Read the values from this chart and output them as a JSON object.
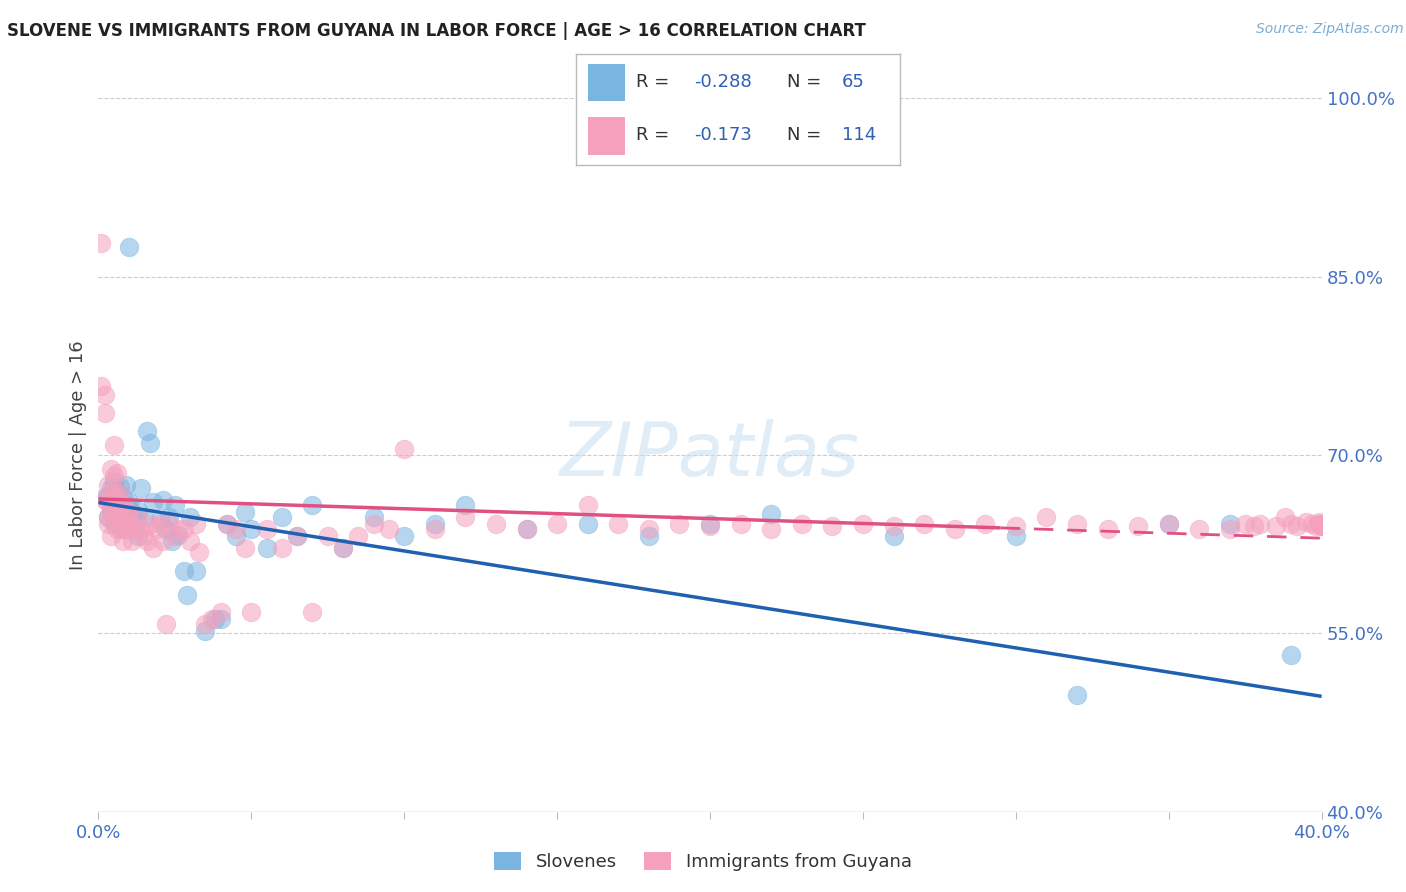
{
  "title": "SLOVENE VS IMMIGRANTS FROM GUYANA IN LABOR FORCE | AGE > 16 CORRELATION CHART",
  "source": "Source: ZipAtlas.com",
  "ylabel": "In Labor Force | Age > 16",
  "xlim": [
    0.0,
    0.4
  ],
  "ylim": [
    0.4,
    1.0
  ],
  "xticks": [
    0.0,
    0.05,
    0.1,
    0.15,
    0.2,
    0.25,
    0.3,
    0.35,
    0.4
  ],
  "yticks_right": [
    1.0,
    0.85,
    0.7,
    0.55,
    0.4
  ],
  "ytick_right_labels": [
    "100.0%",
    "85.0%",
    "70.0%",
    "55.0%",
    "40.0%"
  ],
  "grid_color": "#cccccc",
  "background_color": "#ffffff",
  "blue_color": "#7ab4e0",
  "pink_color": "#f5a0bc",
  "blue_line_color": "#2060b0",
  "pink_line_color": "#e05080",
  "trend_blue_x0": 0.0,
  "trend_blue_x1": 0.4,
  "trend_blue_y0": 0.66,
  "trend_blue_y1": 0.497,
  "trend_pink_x0": 0.0,
  "trend_pink_x1": 0.4,
  "trend_pink_y0": 0.663,
  "trend_pink_y1": 0.63,
  "trend_pink_solid_end": 0.295,
  "slovene_x": [
    0.002,
    0.003,
    0.003,
    0.004,
    0.004,
    0.005,
    0.005,
    0.005,
    0.006,
    0.006,
    0.007,
    0.007,
    0.008,
    0.008,
    0.009,
    0.009,
    0.01,
    0.01,
    0.011,
    0.012,
    0.013,
    0.013,
    0.014,
    0.015,
    0.016,
    0.017,
    0.018,
    0.02,
    0.021,
    0.022,
    0.023,
    0.024,
    0.025,
    0.026,
    0.028,
    0.029,
    0.03,
    0.032,
    0.035,
    0.038,
    0.04,
    0.042,
    0.045,
    0.048,
    0.05,
    0.055,
    0.06,
    0.065,
    0.07,
    0.08,
    0.09,
    0.1,
    0.11,
    0.12,
    0.14,
    0.16,
    0.18,
    0.2,
    0.22,
    0.26,
    0.3,
    0.32,
    0.35,
    0.37,
    0.39
  ],
  "slovene_y": [
    0.665,
    0.665,
    0.648,
    0.672,
    0.655,
    0.678,
    0.66,
    0.642,
    0.67,
    0.655,
    0.673,
    0.65,
    0.665,
    0.638,
    0.658,
    0.675,
    0.875,
    0.66,
    0.652,
    0.645,
    0.653,
    0.632,
    0.672,
    0.648,
    0.72,
    0.71,
    0.66,
    0.645,
    0.662,
    0.638,
    0.648,
    0.628,
    0.658,
    0.633,
    0.602,
    0.582,
    0.648,
    0.602,
    0.552,
    0.562,
    0.562,
    0.642,
    0.632,
    0.652,
    0.638,
    0.622,
    0.648,
    0.632,
    0.658,
    0.622,
    0.648,
    0.632,
    0.642,
    0.658,
    0.638,
    0.642,
    0.632,
    0.642,
    0.65,
    0.632,
    0.632,
    0.498,
    0.642,
    0.642,
    0.532
  ],
  "guyana_x": [
    0.001,
    0.001,
    0.002,
    0.002,
    0.002,
    0.003,
    0.003,
    0.003,
    0.003,
    0.004,
    0.004,
    0.004,
    0.004,
    0.005,
    0.005,
    0.005,
    0.005,
    0.006,
    0.006,
    0.006,
    0.006,
    0.007,
    0.007,
    0.007,
    0.008,
    0.008,
    0.008,
    0.009,
    0.009,
    0.01,
    0.01,
    0.011,
    0.011,
    0.012,
    0.013,
    0.014,
    0.015,
    0.016,
    0.017,
    0.018,
    0.019,
    0.02,
    0.021,
    0.022,
    0.023,
    0.025,
    0.026,
    0.028,
    0.03,
    0.032,
    0.033,
    0.035,
    0.037,
    0.04,
    0.042,
    0.045,
    0.048,
    0.05,
    0.055,
    0.06,
    0.065,
    0.07,
    0.075,
    0.08,
    0.085,
    0.09,
    0.095,
    0.1,
    0.11,
    0.12,
    0.13,
    0.14,
    0.15,
    0.16,
    0.17,
    0.18,
    0.19,
    0.2,
    0.21,
    0.22,
    0.23,
    0.24,
    0.25,
    0.26,
    0.27,
    0.28,
    0.29,
    0.3,
    0.31,
    0.32,
    0.33,
    0.34,
    0.35,
    0.36,
    0.37,
    0.375,
    0.378,
    0.38,
    0.385,
    0.388,
    0.39,
    0.392,
    0.395,
    0.397,
    0.398,
    0.399,
    0.399,
    0.4,
    0.4,
    0.4,
    0.4,
    0.4
  ],
  "guyana_y": [
    0.878,
    0.758,
    0.75,
    0.735,
    0.662,
    0.675,
    0.66,
    0.648,
    0.642,
    0.688,
    0.668,
    0.652,
    0.632,
    0.708,
    0.682,
    0.668,
    0.648,
    0.685,
    0.665,
    0.652,
    0.638,
    0.668,
    0.648,
    0.638,
    0.658,
    0.642,
    0.628,
    0.652,
    0.638,
    0.652,
    0.642,
    0.642,
    0.628,
    0.638,
    0.648,
    0.638,
    0.632,
    0.628,
    0.642,
    0.622,
    0.638,
    0.642,
    0.628,
    0.558,
    0.642,
    0.632,
    0.638,
    0.638,
    0.628,
    0.642,
    0.618,
    0.558,
    0.562,
    0.568,
    0.642,
    0.638,
    0.622,
    0.568,
    0.638,
    0.622,
    0.632,
    0.568,
    0.632,
    0.622,
    0.632,
    0.642,
    0.638,
    0.705,
    0.638,
    0.648,
    0.642,
    0.638,
    0.642,
    0.658,
    0.642,
    0.638,
    0.642,
    0.64,
    0.642,
    0.638,
    0.642,
    0.64,
    0.642,
    0.64,
    0.642,
    0.638,
    0.642,
    0.64,
    0.648,
    0.642,
    0.638,
    0.64,
    0.642,
    0.638,
    0.638,
    0.642,
    0.64,
    0.642,
    0.64,
    0.648,
    0.642,
    0.64,
    0.644,
    0.642,
    0.64,
    0.642,
    0.644,
    0.64,
    0.642,
    0.64,
    0.642,
    0.64
  ]
}
